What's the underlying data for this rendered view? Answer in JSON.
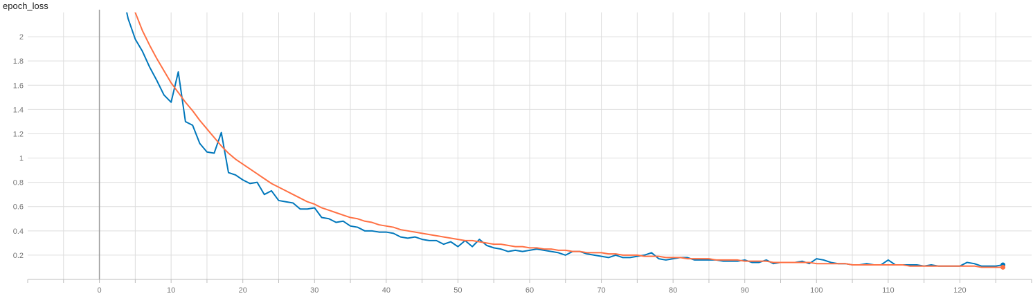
{
  "chart_data": {
    "type": "line",
    "title": "epoch_loss",
    "xlabel": "",
    "ylabel": "",
    "xlim": [
      -10,
      130
    ],
    "ylim": [
      0,
      2.2
    ],
    "x_ticks": [
      0,
      10,
      20,
      30,
      40,
      50,
      60,
      70,
      80,
      90,
      100,
      110,
      120
    ],
    "y_ticks": [
      0.2,
      0.4,
      0.6,
      0.8,
      1,
      1.2,
      1.4,
      1.6,
      1.8,
      2
    ],
    "grid": true,
    "series": [
      {
        "color": "#0077bb",
        "points": [
          [
            3,
            2.42
          ],
          [
            4,
            2.15
          ],
          [
            5,
            1.98
          ],
          [
            6,
            1.88
          ],
          [
            7,
            1.75
          ],
          [
            8,
            1.64
          ],
          [
            9,
            1.52
          ],
          [
            10,
            1.46
          ],
          [
            11,
            1.71
          ],
          [
            12,
            1.3
          ],
          [
            13,
            1.27
          ],
          [
            14,
            1.12
          ],
          [
            15,
            1.05
          ],
          [
            16,
            1.04
          ],
          [
            17,
            1.21
          ],
          [
            18,
            0.88
          ],
          [
            19,
            0.86
          ],
          [
            20,
            0.82
          ],
          [
            21,
            0.79
          ],
          [
            22,
            0.8
          ],
          [
            23,
            0.7
          ],
          [
            24,
            0.73
          ],
          [
            25,
            0.65
          ],
          [
            26,
            0.64
          ],
          [
            27,
            0.63
          ],
          [
            28,
            0.58
          ],
          [
            29,
            0.58
          ],
          [
            30,
            0.59
          ],
          [
            31,
            0.51
          ],
          [
            32,
            0.5
          ],
          [
            33,
            0.47
          ],
          [
            34,
            0.48
          ],
          [
            35,
            0.44
          ],
          [
            36,
            0.43
          ],
          [
            37,
            0.4
          ],
          [
            38,
            0.4
          ],
          [
            39,
            0.39
          ],
          [
            40,
            0.39
          ],
          [
            41,
            0.38
          ],
          [
            42,
            0.35
          ],
          [
            43,
            0.34
          ],
          [
            44,
            0.35
          ],
          [
            45,
            0.33
          ],
          [
            46,
            0.32
          ],
          [
            47,
            0.32
          ],
          [
            48,
            0.29
          ],
          [
            49,
            0.31
          ],
          [
            50,
            0.27
          ],
          [
            51,
            0.32
          ],
          [
            52,
            0.27
          ],
          [
            53,
            0.33
          ],
          [
            54,
            0.28
          ],
          [
            55,
            0.26
          ],
          [
            56,
            0.25
          ],
          [
            57,
            0.23
          ],
          [
            58,
            0.24
          ],
          [
            59,
            0.23
          ],
          [
            60,
            0.24
          ],
          [
            61,
            0.25
          ],
          [
            62,
            0.24
          ],
          [
            63,
            0.23
          ],
          [
            64,
            0.22
          ],
          [
            65,
            0.2
          ],
          [
            66,
            0.23
          ],
          [
            67,
            0.23
          ],
          [
            68,
            0.21
          ],
          [
            69,
            0.2
          ],
          [
            70,
            0.19
          ],
          [
            71,
            0.18
          ],
          [
            72,
            0.2
          ],
          [
            73,
            0.18
          ],
          [
            74,
            0.18
          ],
          [
            75,
            0.19
          ],
          [
            76,
            0.2
          ],
          [
            77,
            0.22
          ],
          [
            78,
            0.17
          ],
          [
            79,
            0.16
          ],
          [
            80,
            0.17
          ],
          [
            81,
            0.18
          ],
          [
            82,
            0.18
          ],
          [
            83,
            0.16
          ],
          [
            84,
            0.16
          ],
          [
            85,
            0.16
          ],
          [
            86,
            0.16
          ],
          [
            87,
            0.15
          ],
          [
            88,
            0.15
          ],
          [
            89,
            0.15
          ],
          [
            90,
            0.16
          ],
          [
            91,
            0.14
          ],
          [
            92,
            0.14
          ],
          [
            93,
            0.16
          ],
          [
            94,
            0.13
          ],
          [
            95,
            0.14
          ],
          [
            96,
            0.14
          ],
          [
            97,
            0.14
          ],
          [
            98,
            0.15
          ],
          [
            99,
            0.13
          ],
          [
            100,
            0.17
          ],
          [
            101,
            0.16
          ],
          [
            102,
            0.14
          ],
          [
            103,
            0.13
          ],
          [
            104,
            0.13
          ],
          [
            105,
            0.12
          ],
          [
            106,
            0.12
          ],
          [
            107,
            0.13
          ],
          [
            108,
            0.12
          ],
          [
            109,
            0.12
          ],
          [
            110,
            0.16
          ],
          [
            111,
            0.12
          ],
          [
            112,
            0.12
          ],
          [
            113,
            0.12
          ],
          [
            114,
            0.12
          ],
          [
            115,
            0.11
          ],
          [
            116,
            0.12
          ],
          [
            117,
            0.11
          ],
          [
            118,
            0.11
          ],
          [
            119,
            0.11
          ],
          [
            120,
            0.11
          ],
          [
            121,
            0.14
          ],
          [
            122,
            0.13
          ],
          [
            123,
            0.11
          ],
          [
            124,
            0.11
          ],
          [
            125,
            0.11
          ],
          [
            126,
            0.12
          ]
        ]
      },
      {
        "color": "#ff7043",
        "points": [
          [
            4,
            2.42
          ],
          [
            5,
            2.2
          ],
          [
            6,
            2.05
          ],
          [
            7,
            1.93
          ],
          [
            8,
            1.82
          ],
          [
            9,
            1.72
          ],
          [
            10,
            1.62
          ],
          [
            11,
            1.54
          ],
          [
            12,
            1.46
          ],
          [
            13,
            1.39
          ],
          [
            14,
            1.31
          ],
          [
            15,
            1.24
          ],
          [
            16,
            1.17
          ],
          [
            17,
            1.1
          ],
          [
            18,
            1.04
          ],
          [
            19,
            0.99
          ],
          [
            20,
            0.95
          ],
          [
            21,
            0.91
          ],
          [
            22,
            0.87
          ],
          [
            23,
            0.83
          ],
          [
            24,
            0.79
          ],
          [
            25,
            0.76
          ],
          [
            26,
            0.73
          ],
          [
            27,
            0.7
          ],
          [
            28,
            0.67
          ],
          [
            29,
            0.64
          ],
          [
            30,
            0.62
          ],
          [
            31,
            0.59
          ],
          [
            32,
            0.57
          ],
          [
            33,
            0.55
          ],
          [
            34,
            0.53
          ],
          [
            35,
            0.51
          ],
          [
            36,
            0.5
          ],
          [
            37,
            0.48
          ],
          [
            38,
            0.47
          ],
          [
            39,
            0.45
          ],
          [
            40,
            0.44
          ],
          [
            41,
            0.43
          ],
          [
            42,
            0.41
          ],
          [
            43,
            0.4
          ],
          [
            44,
            0.39
          ],
          [
            45,
            0.38
          ],
          [
            46,
            0.37
          ],
          [
            47,
            0.36
          ],
          [
            48,
            0.35
          ],
          [
            49,
            0.34
          ],
          [
            50,
            0.33
          ],
          [
            51,
            0.32
          ],
          [
            52,
            0.32
          ],
          [
            53,
            0.31
          ],
          [
            54,
            0.3
          ],
          [
            55,
            0.29
          ],
          [
            56,
            0.29
          ],
          [
            57,
            0.28
          ],
          [
            58,
            0.27
          ],
          [
            59,
            0.27
          ],
          [
            60,
            0.26
          ],
          [
            61,
            0.26
          ],
          [
            62,
            0.25
          ],
          [
            63,
            0.25
          ],
          [
            64,
            0.24
          ],
          [
            65,
            0.24
          ],
          [
            66,
            0.23
          ],
          [
            67,
            0.23
          ],
          [
            68,
            0.22
          ],
          [
            69,
            0.22
          ],
          [
            70,
            0.22
          ],
          [
            71,
            0.21
          ],
          [
            72,
            0.21
          ],
          [
            73,
            0.2
          ],
          [
            74,
            0.2
          ],
          [
            75,
            0.2
          ],
          [
            76,
            0.19
          ],
          [
            77,
            0.19
          ],
          [
            78,
            0.19
          ],
          [
            79,
            0.18
          ],
          [
            80,
            0.18
          ],
          [
            81,
            0.18
          ],
          [
            82,
            0.17
          ],
          [
            83,
            0.17
          ],
          [
            84,
            0.17
          ],
          [
            85,
            0.17
          ],
          [
            86,
            0.16
          ],
          [
            87,
            0.16
          ],
          [
            88,
            0.16
          ],
          [
            89,
            0.16
          ],
          [
            90,
            0.15
          ],
          [
            91,
            0.15
          ],
          [
            92,
            0.15
          ],
          [
            93,
            0.15
          ],
          [
            94,
            0.14
          ],
          [
            95,
            0.14
          ],
          [
            96,
            0.14
          ],
          [
            97,
            0.14
          ],
          [
            98,
            0.14
          ],
          [
            99,
            0.14
          ],
          [
            100,
            0.13
          ],
          [
            101,
            0.13
          ],
          [
            102,
            0.13
          ],
          [
            103,
            0.13
          ],
          [
            104,
            0.13
          ],
          [
            105,
            0.12
          ],
          [
            106,
            0.12
          ],
          [
            107,
            0.12
          ],
          [
            108,
            0.12
          ],
          [
            109,
            0.12
          ],
          [
            110,
            0.12
          ],
          [
            111,
            0.12
          ],
          [
            112,
            0.12
          ],
          [
            113,
            0.11
          ],
          [
            114,
            0.11
          ],
          [
            115,
            0.11
          ],
          [
            116,
            0.11
          ],
          [
            117,
            0.11
          ],
          [
            118,
            0.11
          ],
          [
            119,
            0.11
          ],
          [
            120,
            0.11
          ],
          [
            121,
            0.11
          ],
          [
            122,
            0.11
          ],
          [
            123,
            0.1
          ],
          [
            124,
            0.1
          ],
          [
            125,
            0.1
          ],
          [
            126,
            0.1
          ]
        ]
      }
    ]
  }
}
